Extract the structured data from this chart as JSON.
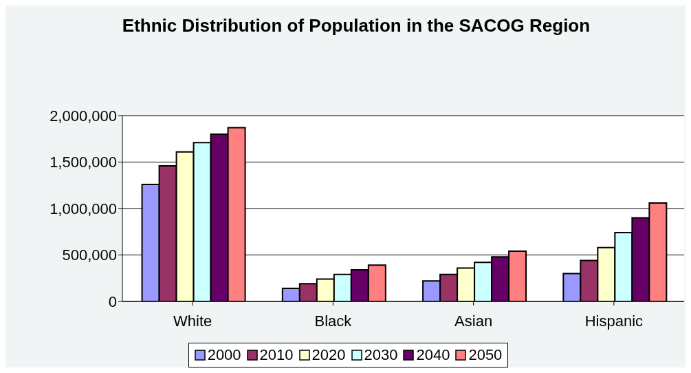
{
  "chart_data": {
    "type": "bar",
    "title": "Ethnic Distribution of Population in the SACOG Region",
    "categories": [
      "White",
      "Black",
      "Asian",
      "Hispanic"
    ],
    "series": [
      {
        "name": "2000",
        "color": "#9999ff",
        "values": [
          1260000,
          140000,
          220000,
          300000
        ]
      },
      {
        "name": "2010",
        "color": "#993366",
        "values": [
          1460000,
          190000,
          290000,
          440000
        ]
      },
      {
        "name": "2020",
        "color": "#ffffcc",
        "values": [
          1610000,
          240000,
          360000,
          580000
        ]
      },
      {
        "name": "2030",
        "color": "#ccffff",
        "values": [
          1710000,
          290000,
          420000,
          740000
        ]
      },
      {
        "name": "2040",
        "color": "#660066",
        "values": [
          1800000,
          340000,
          480000,
          900000
        ]
      },
      {
        "name": "2050",
        "color": "#ff8080",
        "values": [
          1870000,
          390000,
          540000,
          1060000
        ]
      }
    ],
    "ylim": [
      0,
      2000000
    ],
    "yticks": [
      {
        "value": 0,
        "label": "0"
      },
      {
        "value": 500000,
        "label": "500,000"
      },
      {
        "value": 1000000,
        "label": "1,000,000"
      },
      {
        "value": 1500000,
        "label": "1,500,000"
      },
      {
        "value": 2000000,
        "label": "2,000,000"
      }
    ],
    "grid": "y",
    "legend": "bottom"
  }
}
